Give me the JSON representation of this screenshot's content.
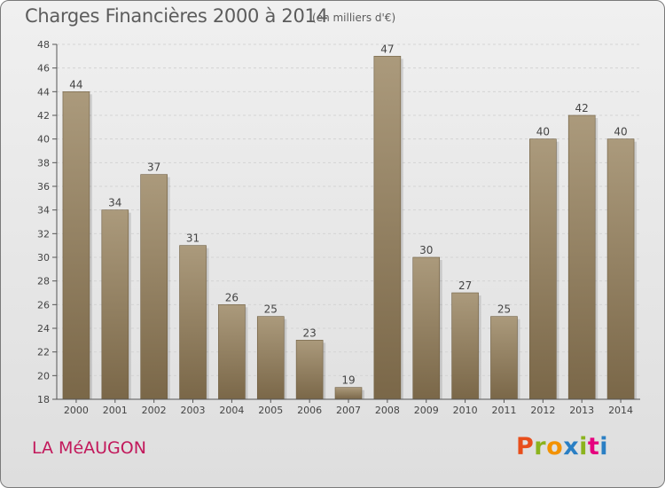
{
  "header": {
    "title": "Charges Financières 2000 à 2014",
    "unit": "(en milliers d'€)"
  },
  "footer": {
    "commune": "LA MéAUGON",
    "logo_text": "Proxiti",
    "logo_colors": [
      "#e84e1b",
      "#8bb31d",
      "#f39200",
      "#2a7fc4",
      "#8bb31d",
      "#e6007e",
      "#2a7fc4"
    ]
  },
  "colors": {
    "bar_light": "#ab9a7c",
    "bar_dark": "#7a6748",
    "axis": "#555555",
    "grid": "#cfcfcf",
    "commune": "#c2185b"
  },
  "chart_data": {
    "type": "bar",
    "title": "Charges Financières 2000 à 2014",
    "subtitle": "(en milliers d'€)",
    "categories": [
      "2000",
      "2001",
      "2002",
      "2003",
      "2004",
      "2005",
      "2006",
      "2007",
      "2008",
      "2009",
      "2010",
      "2011",
      "2012",
      "2013",
      "2014"
    ],
    "values": [
      44,
      34,
      37,
      31,
      26,
      25,
      23,
      19,
      47,
      30,
      27,
      25,
      40,
      42,
      40
    ],
    "ylim": [
      18,
      48
    ],
    "yticks": [
      18,
      20,
      22,
      24,
      26,
      28,
      30,
      32,
      34,
      36,
      38,
      40,
      42,
      44,
      46,
      48
    ],
    "grid": true,
    "data_labels": true,
    "xlabel": "",
    "ylabel": ""
  }
}
